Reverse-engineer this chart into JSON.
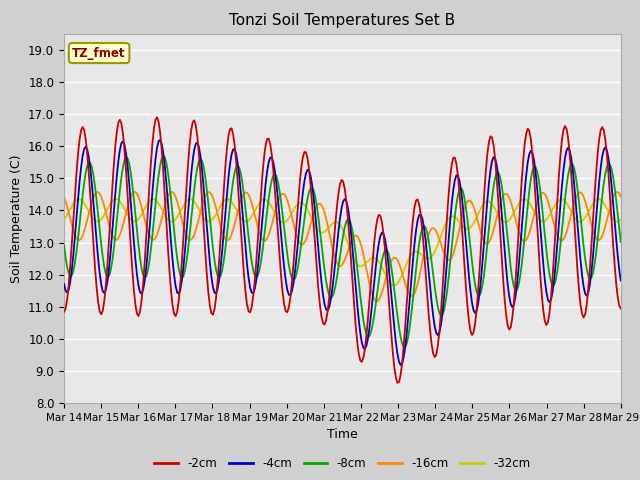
{
  "title": "Tonzi Soil Temperatures Set B",
  "xlabel": "Time",
  "ylabel": "Soil Temperature (C)",
  "ylim": [
    8.0,
    19.5
  ],
  "yticks": [
    8.0,
    9.0,
    10.0,
    11.0,
    12.0,
    13.0,
    14.0,
    15.0,
    16.0,
    17.0,
    18.0,
    19.0
  ],
  "fig_bg": "#d0d0d0",
  "plot_bg": "#e8e8e8",
  "legend_label": "TZ_fmet",
  "series": {
    "-2cm": {
      "color": "#cc0000",
      "lw": 1.3
    },
    "-4cm": {
      "color": "#0000cc",
      "lw": 1.3
    },
    "-8cm": {
      "color": "#00aa00",
      "lw": 1.3
    },
    "-16cm": {
      "color": "#ff8800",
      "lw": 1.3
    },
    "-32cm": {
      "color": "#cccc00",
      "lw": 1.3
    }
  },
  "xtick_labels": [
    "Mar 14",
    "Mar 15",
    "Mar 16",
    "Mar 17",
    "Mar 18",
    "Mar 19",
    "Mar 20",
    "Mar 21",
    "Mar 22",
    "Mar 23",
    "Mar 24",
    "Mar 25",
    "Mar 26",
    "Mar 27",
    "Mar 28",
    "Mar 29"
  ],
  "n_days": 15,
  "points_per_day": 24
}
